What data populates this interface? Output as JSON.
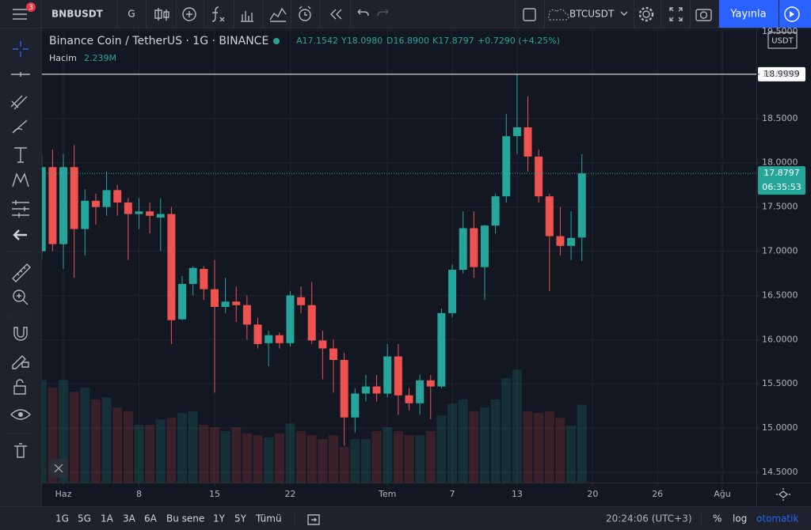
{
  "toolbar": {
    "badge": "3",
    "symbol": "BNBUSDT",
    "interval": "G",
    "compare_symbol": "BTCUSDT",
    "publish": "Yayınla"
  },
  "legend": {
    "title": "Binance Coin / TetherUS · 1G · BINANCE",
    "ohlc": [
      "A17.1542",
      "Y18.0980",
      "D16.8900",
      "K17.8797"
    ],
    "change": "+0.7290 (+4.25%)",
    "volume_name": "Hacim",
    "volume_readout": "2.239M"
  },
  "bottom_bar": {
    "ranges": [
      "1G",
      "5G",
      "1A",
      "3A",
      "6A",
      "Bu sene",
      "1Y",
      "5Y",
      "Tümü"
    ],
    "clock": "20:24:06 (UTC+3)",
    "percent": "%",
    "log": "log",
    "auto": "otomatik"
  },
  "chart_data": {
    "type": "candlestick",
    "currency": "USDT",
    "up_color": "#26a69a",
    "down_color": "#ef5350",
    "grid": true,
    "x": [
      -2,
      -1,
      0,
      1,
      2,
      3,
      4,
      5,
      6,
      7,
      8,
      9,
      10,
      11,
      12,
      13,
      14,
      15,
      16,
      17,
      18,
      19,
      20,
      21,
      22,
      23,
      24,
      25,
      26,
      27,
      28,
      29,
      30,
      31,
      32,
      33,
      34,
      35,
      36,
      37,
      38,
      39,
      40,
      41,
      42,
      43,
      44,
      45,
      46,
      47,
      48
    ],
    "open": [
      17.0,
      17.95,
      17.08,
      17.95,
      17.25,
      17.57,
      17.5,
      17.69,
      17.55,
      17.42,
      17.45,
      17.38,
      17.42,
      16.23,
      16.63,
      16.8,
      16.57,
      16.37,
      16.43,
      16.39,
      16.17,
      15.96,
      16.05,
      15.96,
      16.48,
      16.39,
      15.99,
      15.9,
      15.77,
      15.12,
      15.39,
      15.47,
      15.39,
      15.81,
      15.37,
      15.28,
      15.54,
      15.47,
      16.3,
      16.79,
      17.26,
      16.82,
      17.29,
      17.62,
      18.3,
      18.4,
      18.07,
      17.62,
      17.17,
      17.06,
      17.1542
    ],
    "high": [
      18.1,
      18.15,
      18.1,
      18.2,
      17.7,
      17.65,
      17.9,
      17.75,
      17.6,
      17.6,
      17.55,
      17.6,
      17.5,
      16.72,
      16.83,
      16.83,
      16.9,
      16.7,
      16.6,
      16.5,
      16.25,
      16.1,
      16.08,
      16.55,
      16.6,
      16.65,
      16.1,
      16.0,
      15.85,
      15.45,
      15.6,
      15.6,
      15.95,
      15.95,
      15.45,
      15.6,
      15.6,
      16.35,
      16.85,
      17.45,
      17.45,
      17.3,
      17.65,
      18.55,
      18.9999,
      18.75,
      18.15,
      17.65,
      17.5,
      17.45,
      18.098
    ],
    "low": [
      16.9,
      17.0,
      16.8,
      16.7,
      16.95,
      17.3,
      17.4,
      17.4,
      16.9,
      17.25,
      17.2,
      17.0,
      15.95,
      16.22,
      16.5,
      16.45,
      15.4,
      16.3,
      16.2,
      16.0,
      15.9,
      15.7,
      15.9,
      15.92,
      16.3,
      15.95,
      15.55,
      15.4,
      14.8,
      14.95,
      15.3,
      15.3,
      15.35,
      15.15,
      15.2,
      15.15,
      15.1,
      15.45,
      16.25,
      16.75,
      16.7,
      16.45,
      17.2,
      17.55,
      18.1,
      17.9,
      17.55,
      16.55,
      16.95,
      16.9,
      16.89
    ],
    "close": [
      17.95,
      17.08,
      17.95,
      17.25,
      17.57,
      17.5,
      17.69,
      17.55,
      17.42,
      17.45,
      17.4,
      17.42,
      16.22,
      16.63,
      16.81,
      16.57,
      16.37,
      16.43,
      16.39,
      16.17,
      15.95,
      16.05,
      15.96,
      16.5,
      16.39,
      15.99,
      15.9,
      15.77,
      15.12,
      15.39,
      15.47,
      15.39,
      15.81,
      15.37,
      15.28,
      15.54,
      15.47,
      16.3,
      16.79,
      17.26,
      16.82,
      17.29,
      17.62,
      18.3,
      18.4,
      18.07,
      17.62,
      17.17,
      17.06,
      17.15,
      17.8797
    ],
    "volume": {
      "name": "Hacim",
      "values": [
        2.95,
        2.73,
        2.95,
        2.61,
        2.73,
        2.39,
        2.45,
        2.16,
        2.05,
        1.66,
        1.66,
        1.82,
        1.86,
        2.0,
        2.05,
        1.66,
        1.59,
        1.48,
        1.59,
        1.41,
        1.36,
        1.3,
        1.41,
        1.7,
        1.48,
        1.36,
        1.25,
        1.36,
        1.02,
        1.25,
        1.25,
        1.48,
        1.59,
        1.48,
        1.36,
        1.36,
        1.48,
        1.93,
        2.27,
        2.39,
        2.05,
        2.16,
        2.39,
        3.0,
        3.25,
        2.05,
        2.0,
        2.05,
        1.86,
        1.64,
        2.239
      ]
    },
    "volume_ylim": [
      0,
      13.07
    ],
    "xlim": [
      -1.98,
      64.15
    ],
    "xticks": [
      {
        "value": 0,
        "label": "Haz"
      },
      {
        "value": 7,
        "label": "8"
      },
      {
        "value": 14,
        "label": "15"
      },
      {
        "value": 21,
        "label": "22"
      },
      {
        "value": 30,
        "label": "Tem"
      },
      {
        "value": 36,
        "label": "7"
      },
      {
        "value": 42,
        "label": "13"
      },
      {
        "value": 49,
        "label": "20"
      },
      {
        "value": 55,
        "label": "26"
      },
      {
        "value": 61,
        "label": "Ağu"
      }
    ],
    "ylim": [
      14.384,
      19.518
    ],
    "yticks": [
      {
        "value": 14.5,
        "label": "14.5000"
      },
      {
        "value": 15,
        "label": "15.0000"
      },
      {
        "value": 15.5,
        "label": "15.5000"
      },
      {
        "value": 16,
        "label": "16.0000"
      },
      {
        "value": 16.5,
        "label": "16.5000"
      },
      {
        "value": 17,
        "label": "17.0000"
      },
      {
        "value": 17.5,
        "label": "17.5000"
      },
      {
        "value": 18,
        "label": "18.0000"
      },
      {
        "value": 18.5,
        "label": "18.5000"
      },
      {
        "value": 19,
        "label": "19.0000"
      },
      {
        "value": 19.5,
        "label": "19.5000"
      }
    ],
    "horizontal_line": 18.9999,
    "last_price": 17.8797,
    "countdown": "06:35:53"
  }
}
